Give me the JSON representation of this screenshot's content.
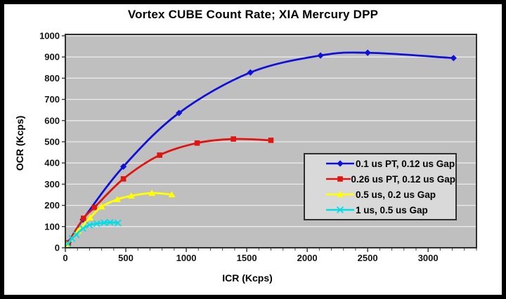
{
  "window": {
    "background": "#ffffff",
    "frame_border_color": "#000000"
  },
  "chart_data": {
    "type": "line",
    "title": "Vortex CUBE Count Rate; XIA Mercury DPP",
    "xlabel": "ICR (Kcps)",
    "ylabel": "OCR (Kcps)",
    "xlim": [
      0,
      3400
    ],
    "ylim": [
      0,
      1000
    ],
    "x_ticks": [
      0,
      500,
      1000,
      1500,
      2000,
      2500,
      3000
    ],
    "x_minor_tick_step": 100,
    "y_ticks": [
      0,
      100,
      200,
      300,
      400,
      500,
      600,
      700,
      800,
      900,
      1000
    ],
    "grid": "horizontal-only",
    "legend_position": "center-right",
    "colors": {
      "plot_bg": "#bfbfbf",
      "gridline": "#ebebeb",
      "plot_border": "#2e2e2e",
      "tick_text": "#141414",
      "legend_bg": "#d9d9d9",
      "legend_border": "#2f2f2f"
    },
    "series": [
      {
        "name": "0.1 us PT, 0.12 us Gap",
        "color": "#0f10d8",
        "marker": "diamond",
        "x": [
          25,
          145,
          480,
          940,
          1530,
          2110,
          2500,
          3210
        ],
        "y": [
          24,
          133,
          383,
          636,
          827,
          907,
          920,
          895
        ]
      },
      {
        "name": "0.26 us PT, 0.12 us Gap",
        "color": "#e01410",
        "marker": "square",
        "x": [
          25,
          150,
          240,
          480,
          780,
          1090,
          1390,
          1700
        ],
        "y": [
          23,
          139,
          190,
          325,
          437,
          494,
          513,
          507
        ]
      },
      {
        "name": "0.5 us, 0.2 us Gap",
        "color": "#ffff00",
        "marker": "triangle",
        "x": [
          15,
          105,
          205,
          300,
          430,
          545,
          715,
          880
        ],
        "y": [
          14,
          79,
          142,
          194,
          228,
          245,
          258,
          251
        ]
      },
      {
        "name": "1 us, 0.5 us Gap",
        "color": "#00dfe8",
        "marker": "x",
        "x": [
          20,
          55,
          90,
          145,
          200,
          260,
          320,
          370,
          435
        ],
        "y": [
          18,
          44,
          62,
          91,
          107,
          114,
          118,
          120,
          117
        ]
      }
    ]
  }
}
